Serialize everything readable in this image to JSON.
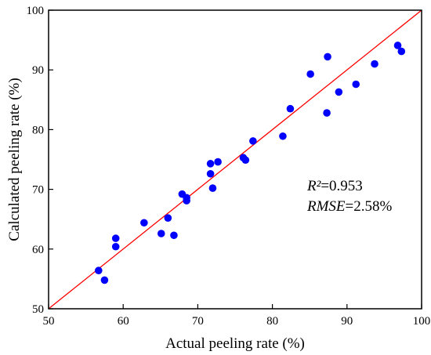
{
  "chart_data": {
    "type": "scatter",
    "xlabel": "Actual peeling rate (%)",
    "ylabel": "Calculated peeling rate (%)",
    "xlim": [
      50,
      100
    ],
    "ylim": [
      50,
      100
    ],
    "xticks": [
      "50",
      "60",
      "70",
      "80",
      "90",
      "100"
    ],
    "yticks": [
      "50",
      "60",
      "70",
      "80",
      "90",
      "100"
    ],
    "grid": false,
    "point_color": "#0000ff",
    "reference_line": {
      "from": [
        50,
        50
      ],
      "to": [
        100,
        100
      ],
      "color": "#ff0000"
    },
    "points": [
      [
        56.7,
        56.4
      ],
      [
        57.5,
        54.8
      ],
      [
        59.0,
        61.8
      ],
      [
        59.0,
        60.4
      ],
      [
        62.8,
        64.4
      ],
      [
        65.1,
        62.6
      ],
      [
        66.0,
        65.2
      ],
      [
        66.8,
        62.3
      ],
      [
        67.9,
        69.2
      ],
      [
        68.5,
        68.6
      ],
      [
        68.5,
        68.1
      ],
      [
        71.7,
        74.3
      ],
      [
        71.7,
        72.6
      ],
      [
        72.0,
        70.2
      ],
      [
        72.7,
        74.6
      ],
      [
        76.1,
        75.3
      ],
      [
        76.4,
        74.9
      ],
      [
        77.4,
        78.1
      ],
      [
        81.4,
        78.9
      ],
      [
        82.4,
        83.5
      ],
      [
        85.1,
        89.3
      ],
      [
        87.3,
        82.8
      ],
      [
        87.4,
        92.2
      ],
      [
        88.9,
        86.3
      ],
      [
        91.2,
        87.6
      ],
      [
        93.7,
        91.0
      ],
      [
        96.8,
        94.1
      ],
      [
        97.3,
        93.1
      ]
    ],
    "annotations": [
      {
        "var": "R²",
        "value": "=0.953"
      },
      {
        "var": "RMSE",
        "value": "=2.58%"
      }
    ]
  }
}
